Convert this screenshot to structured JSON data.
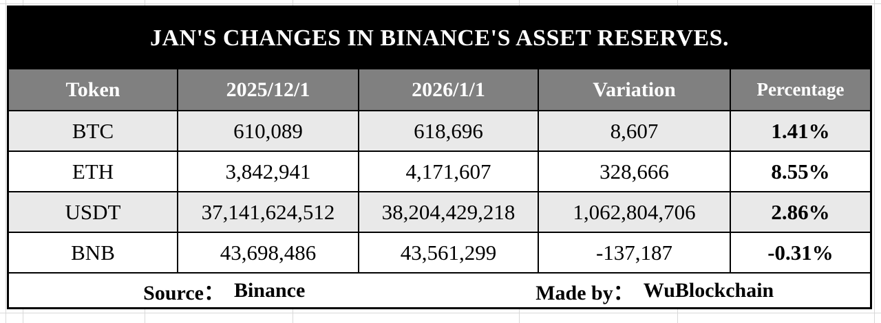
{
  "title": "JAN'S CHANGES IN BINANCE'S ASSET RESERVES.",
  "columns": [
    "Token",
    "2025/12/1",
    "2026/1/1",
    "Variation",
    "Percentage"
  ],
  "rows": [
    [
      "BTC",
      "610,089",
      "618,696",
      "8,607",
      "1.41%"
    ],
    [
      "ETH",
      "3,842,941",
      "4,171,607",
      "328,666",
      "8.55%"
    ],
    [
      "USDT",
      "37,141,624,512",
      "38,204,429,218",
      "1,062,804,706",
      "2.86%"
    ],
    [
      "BNB",
      "43,698,486",
      "43,561,299",
      "-137,187",
      "-0.31%"
    ]
  ],
  "footer": {
    "source_label": "Source：",
    "source_value": "Binance",
    "made_by_label": "Made by：",
    "made_by_value": "WuBlockchain"
  },
  "colors": {
    "title_bg": "#000000",
    "title_text": "#ffffff",
    "header_bg": "#808080",
    "header_text": "#ffffff",
    "row_alt_bg": "#e9e9e9",
    "row_bg": "#ffffff",
    "border": "#000000",
    "background_gridline": "#d8d8d8"
  },
  "chart_data": {
    "type": "table",
    "title": "JAN'S CHANGES IN BINANCE'S ASSET RESERVES.",
    "columns": [
      "Token",
      "2025/12/1",
      "2026/1/1",
      "Variation",
      "Percentage"
    ],
    "rows": [
      {
        "token": "BTC",
        "val_2025_12_1": 610089,
        "val_2026_1_1": 618696,
        "variation": 8607,
        "percentage": 1.41
      },
      {
        "token": "ETH",
        "val_2025_12_1": 3842941,
        "val_2026_1_1": 4171607,
        "variation": 328666,
        "percentage": 8.55
      },
      {
        "token": "USDT",
        "val_2025_12_1": 37141624512,
        "val_2026_1_1": 38204429218,
        "variation": 1062804706,
        "percentage": 2.86
      },
      {
        "token": "BNB",
        "val_2025_12_1": 43698486,
        "val_2026_1_1": 43561299,
        "variation": -137187,
        "percentage": -0.31
      }
    ],
    "source": "Binance",
    "made_by": "WuBlockchain"
  }
}
